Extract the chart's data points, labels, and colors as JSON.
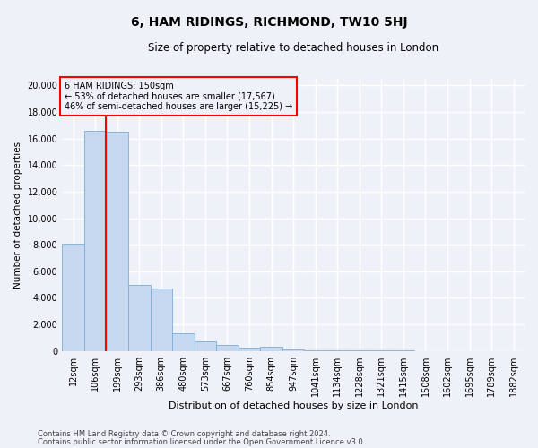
{
  "title": "6, HAM RIDINGS, RICHMOND, TW10 5HJ",
  "subtitle": "Size of property relative to detached houses in London",
  "xlabel": "Distribution of detached houses by size in London",
  "ylabel": "Number of detached properties",
  "annotation_line1": "6 HAM RIDINGS: 150sqm",
  "annotation_line2": "← 53% of detached houses are smaller (17,567)",
  "annotation_line3": "46% of semi-detached houses are larger (15,225) →",
  "footer_line1": "Contains HM Land Registry data © Crown copyright and database right 2024.",
  "footer_line2": "Contains public sector information licensed under the Open Government Licence v3.0.",
  "bar_color": "#c5d8f0",
  "bar_edge_color": "#7bafd4",
  "vline_color": "red",
  "annotation_box_color": "red",
  "categories": [
    "12sqm",
    "106sqm",
    "199sqm",
    "293sqm",
    "386sqm",
    "480sqm",
    "573sqm",
    "667sqm",
    "760sqm",
    "854sqm",
    "947sqm",
    "1041sqm",
    "1134sqm",
    "1228sqm",
    "1321sqm",
    "1415sqm",
    "1508sqm",
    "1602sqm",
    "1695sqm",
    "1789sqm",
    "1882sqm"
  ],
  "values": [
    8050,
    16600,
    16500,
    5000,
    4700,
    1350,
    700,
    430,
    230,
    280,
    120,
    60,
    40,
    25,
    15,
    8,
    5,
    3,
    2,
    2,
    2
  ],
  "vline_position": 1.5,
  "ylim": [
    0,
    20500
  ],
  "yticks": [
    0,
    2000,
    4000,
    6000,
    8000,
    10000,
    12000,
    14000,
    16000,
    18000,
    20000
  ],
  "background_color": "#eef2f8",
  "grid_color": "white",
  "title_fontsize": 10,
  "subtitle_fontsize": 8.5,
  "ylabel_fontsize": 7.5,
  "xlabel_fontsize": 8,
  "tick_fontsize": 7,
  "ann_fontsize": 7,
  "footer_fontsize": 6
}
